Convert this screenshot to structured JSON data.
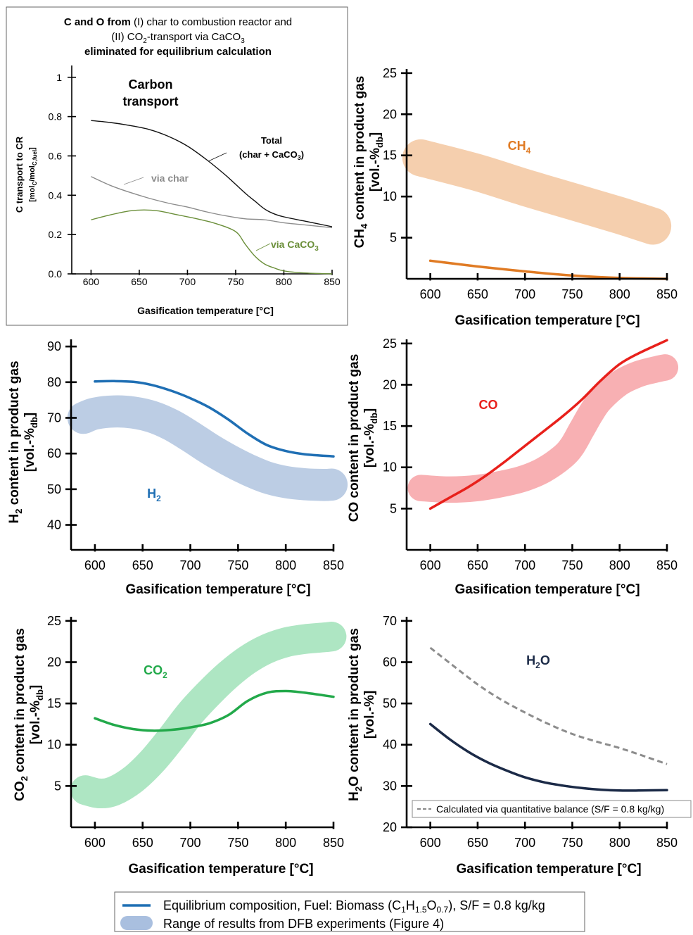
{
  "chart_data": [
    {
      "id": "carbon",
      "type": "line",
      "header_parts": [
        "C and O from",
        " (I) char to combustion reactor and",
        "(II) CO",
        "2",
        "-transport via CaCO",
        "3",
        "eliminated for equilibrium calculation"
      ],
      "title_line1": "Carbon",
      "title_line2": "transport",
      "xlabel": "Gasification temperature [°C]",
      "ylabel_parts": [
        "C transport to CR",
        "[mol",
        "C",
        "/mol",
        "C,fuel",
        "]"
      ],
      "xlim": [
        580,
        850
      ],
      "ylim": [
        0,
        1.06
      ],
      "xticks": [
        600,
        650,
        700,
        750,
        800,
        850
      ],
      "yticks": [
        0.0,
        0.2,
        0.4,
        0.6,
        0.8,
        1
      ],
      "ytick_labels": [
        "0.0",
        "0.2",
        "0.4",
        "0.6",
        "0.8",
        "1"
      ],
      "series": [
        {
          "name": "Total (char + CaCO3)",
          "label_parts": [
            "Total",
            "(char + CaCO",
            "3",
            ")"
          ],
          "color": "#111111",
          "x": [
            600,
            620,
            640,
            660,
            680,
            700,
            720,
            740,
            760,
            770,
            780,
            790,
            800,
            820,
            850
          ],
          "y": [
            0.78,
            0.77,
            0.755,
            0.735,
            0.7,
            0.65,
            0.58,
            0.5,
            0.41,
            0.37,
            0.33,
            0.305,
            0.29,
            0.27,
            0.24
          ]
        },
        {
          "name": "via char",
          "label_parts": [
            "via char"
          ],
          "color": "#8c8c8c",
          "x": [
            600,
            620,
            640,
            660,
            680,
            700,
            720,
            740,
            760,
            780,
            800,
            820,
            850
          ],
          "y": [
            0.495,
            0.45,
            0.415,
            0.385,
            0.36,
            0.34,
            0.315,
            0.295,
            0.28,
            0.275,
            0.26,
            0.25,
            0.235
          ]
        },
        {
          "name": "via CaCO3",
          "label_parts": [
            "via CaCO",
            "3"
          ],
          "color": "#6b8f3a",
          "x": [
            600,
            620,
            640,
            655,
            670,
            690,
            710,
            730,
            750,
            760,
            770,
            780,
            790,
            800,
            820,
            850
          ],
          "y": [
            0.275,
            0.3,
            0.32,
            0.325,
            0.32,
            0.3,
            0.28,
            0.255,
            0.215,
            0.15,
            0.09,
            0.05,
            0.03,
            0.015,
            0.005,
            0.0
          ]
        }
      ]
    },
    {
      "id": "ch4",
      "type": "line",
      "species_parts": [
        "CH",
        "4"
      ],
      "species_color": "#e07b24",
      "xlabel": "Gasification temperature [°C]",
      "ylabel_parts": [
        "CH",
        "4",
        " content in product gas",
        "[vol.-%",
        "db",
        "]"
      ],
      "xlim": [
        575,
        850
      ],
      "ylim": [
        0,
        25.5
      ],
      "xticks": [
        600,
        650,
        700,
        750,
        800,
        850
      ],
      "yticks": [
        5,
        10,
        15,
        20,
        25
      ],
      "equilibrium": {
        "color": "#e07b24",
        "x": [
          600,
          650,
          700,
          750,
          800,
          850
        ],
        "y": [
          2.2,
          1.5,
          0.9,
          0.4,
          0.1,
          0.0
        ]
      },
      "experimental_range": {
        "color": "#f5cfae",
        "width_units": 4.5,
        "x": [
          590,
          650,
          700,
          750,
          800,
          835
        ],
        "y": [
          14.7,
          12.9,
          11.1,
          9.4,
          7.7,
          6.4
        ]
      }
    },
    {
      "id": "h2",
      "type": "line",
      "species_parts": [
        "H",
        "2"
      ],
      "species_color": "#1f6fb4",
      "xlabel": "Gasification temperature [°C]",
      "ylabel_parts": [
        "H",
        "2",
        " content in product gas",
        "[vol.-%",
        "db",
        "]"
      ],
      "xlim": [
        575,
        850
      ],
      "ylim": [
        33,
        92
      ],
      "xticks": [
        600,
        650,
        700,
        750,
        800,
        850
      ],
      "yticks": [
        40,
        50,
        60,
        70,
        80,
        90
      ],
      "equilibrium": {
        "color": "#1f6fb4",
        "x": [
          600,
          620,
          640,
          660,
          680,
          700,
          720,
          740,
          760,
          780,
          800,
          820,
          850
        ],
        "y": [
          80.2,
          80.3,
          80.1,
          79.2,
          77.6,
          75.5,
          72.9,
          69.5,
          65.6,
          62.4,
          60.7,
          59.8,
          59.2
        ]
      },
      "experimental_range": {
        "color": "#bccde4",
        "width_units": 9,
        "x": [
          588,
          600,
          620,
          640,
          660,
          680,
          700,
          720,
          740,
          760,
          780,
          800,
          820,
          840,
          848
        ],
        "y": [
          70,
          71.2,
          71.8,
          71.5,
          70.3,
          68,
          64.8,
          61.3,
          58.2,
          55.5,
          53.3,
          52,
          51.4,
          51.2,
          51.3
        ]
      }
    },
    {
      "id": "co",
      "type": "line",
      "species_parts": [
        "CO"
      ],
      "species_color": "#e8201b",
      "xlabel": "Gasification temperature [°C]",
      "ylabel_parts": [
        "CO content in product gas",
        "[vol.-%",
        "db",
        "]"
      ],
      "xlim": [
        575,
        850
      ],
      "ylim": [
        0,
        25.5
      ],
      "xticks": [
        600,
        650,
        700,
        750,
        800,
        850
      ],
      "yticks": [
        5,
        10,
        15,
        20,
        25
      ],
      "equilibrium": {
        "color": "#e8201b",
        "x": [
          600,
          620,
          640,
          660,
          680,
          700,
          720,
          740,
          760,
          780,
          800,
          820,
          850
        ],
        "y": [
          5.0,
          6.3,
          7.6,
          9.1,
          10.8,
          12.6,
          14.4,
          16.2,
          18.2,
          20.5,
          22.5,
          23.8,
          25.4
        ]
      },
      "experimental_range": {
        "color": "#f8b0b3",
        "width_units": 3.2,
        "x": [
          590,
          620,
          650,
          680,
          700,
          720,
          740,
          750,
          760,
          770,
          780,
          800,
          820,
          840,
          848
        ],
        "y": [
          7.5,
          7.3,
          7.5,
          8.1,
          8.7,
          9.7,
          11.3,
          12.6,
          14.6,
          16.6,
          18.2,
          20.2,
          21.3,
          21.9,
          22.1
        ]
      }
    },
    {
      "id": "co2",
      "type": "line",
      "species_parts": [
        "CO",
        "2"
      ],
      "species_color": "#22a94a",
      "xlabel": "Gasification temperature [°C]",
      "ylabel_parts": [
        "CO",
        "2",
        " content in product gas",
        "[vol.-%",
        "db",
        "]"
      ],
      "xlim": [
        575,
        850
      ],
      "ylim": [
        0,
        25.5
      ],
      "xticks": [
        600,
        650,
        700,
        750,
        800,
        850
      ],
      "yticks": [
        5,
        10,
        15,
        20,
        25
      ],
      "equilibrium": {
        "color": "#22a94a",
        "x": [
          600,
          620,
          640,
          660,
          680,
          700,
          720,
          740,
          760,
          780,
          800,
          820,
          850
        ],
        "y": [
          13.2,
          12.4,
          11.9,
          11.7,
          11.8,
          12.1,
          12.6,
          13.6,
          15.3,
          16.3,
          16.5,
          16.3,
          15.8
        ]
      },
      "experimental_range": {
        "color": "#aee6c3",
        "width_units": 3.6,
        "x": [
          590,
          605,
          620,
          640,
          660,
          680,
          700,
          720,
          740,
          760,
          780,
          800,
          820,
          840,
          848
        ],
        "y": [
          4.5,
          4.1,
          4.4,
          5.8,
          8.0,
          10.8,
          13.8,
          16.3,
          18.5,
          20.3,
          21.6,
          22.4,
          22.8,
          23.0,
          23.1
        ]
      }
    },
    {
      "id": "h2o",
      "type": "line",
      "species_parts": [
        "H",
        "2",
        "O"
      ],
      "species_color": "#1b2a47",
      "xlabel": "Gasification temperature [°C]",
      "ylabel_parts": [
        "H",
        "2",
        "O content in product gas",
        "[vol.-%]"
      ],
      "xlim": [
        575,
        850
      ],
      "ylim": [
        20,
        71
      ],
      "xticks": [
        600,
        650,
        700,
        750,
        800,
        850
      ],
      "yticks": [
        20,
        30,
        40,
        50,
        60,
        70
      ],
      "equilibrium": {
        "color": "#1b2a47",
        "x": [
          600,
          620,
          640,
          660,
          680,
          700,
          720,
          740,
          760,
          780,
          800,
          820,
          850
        ],
        "y": [
          45.0,
          41.4,
          38.3,
          35.8,
          33.8,
          32.1,
          30.9,
          30.1,
          29.5,
          29.1,
          28.9,
          28.9,
          29.0
        ]
      },
      "quantitative_balance": {
        "name": "Calculated via quantitative balance (S/F = 0.8 kg/kg)",
        "color": "#8c8c8c",
        "x": [
          600,
          625,
          650,
          675,
          700,
          725,
          750,
          775,
          800,
          825,
          850
        ],
        "y": [
          63.5,
          59,
          54.6,
          50.9,
          47.8,
          45,
          42.6,
          40.8,
          39.2,
          37.3,
          35.3
        ]
      }
    }
  ],
  "legend": {
    "equilibrium_parts": [
      "Equilibrium composition, Fuel: Biomass (C",
      "1",
      "H",
      "1.5",
      "O",
      "0.7",
      "), S/F = 0.8 kg/kg"
    ],
    "range_label": "Range of results from DFB experiments (Figure 4)",
    "equilibrium_color": "#1f6fb4",
    "range_color": "#a9bfdf"
  }
}
